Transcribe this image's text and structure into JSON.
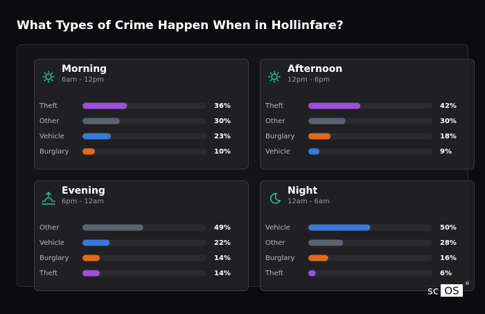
{
  "title": "What Types of Crime Happen When in Hollinfare?",
  "chart_data": [
    {
      "type": "bar",
      "orientation": "horizontal",
      "title": "Morning",
      "subtitle": "6am - 12pm",
      "categories": [
        "Theft",
        "Other",
        "Vehicle",
        "Burglary"
      ],
      "values": [
        36,
        30,
        23,
        10
      ],
      "value_labels": [
        "36%",
        "30%",
        "23%",
        "10%"
      ],
      "colors": [
        "#9b4fd6",
        "#5c6270",
        "#3a78d8",
        "#e06a1c"
      ],
      "xlim": [
        0,
        100
      ]
    },
    {
      "type": "bar",
      "orientation": "horizontal",
      "title": "Afternoon",
      "subtitle": "12pm - 6pm",
      "categories": [
        "Theft",
        "Other",
        "Burglary",
        "Vehicle"
      ],
      "values": [
        42,
        30,
        18,
        9
      ],
      "value_labels": [
        "42%",
        "30%",
        "18%",
        "9%"
      ],
      "colors": [
        "#9b4fd6",
        "#5c6270",
        "#e06a1c",
        "#3a78d8"
      ],
      "xlim": [
        0,
        100
      ]
    },
    {
      "type": "bar",
      "orientation": "horizontal",
      "title": "Evening",
      "subtitle": "6pm - 12am",
      "categories": [
        "Other",
        "Vehicle",
        "Burglary",
        "Theft"
      ],
      "values": [
        49,
        22,
        14,
        14
      ],
      "value_labels": [
        "49%",
        "22%",
        "14%",
        "14%"
      ],
      "colors": [
        "#5c6270",
        "#3a78d8",
        "#e06a1c",
        "#9b4fd6"
      ],
      "xlim": [
        0,
        100
      ]
    },
    {
      "type": "bar",
      "orientation": "horizontal",
      "title": "Night",
      "subtitle": "12am - 6am",
      "categories": [
        "Vehicle",
        "Other",
        "Burglary",
        "Theft"
      ],
      "values": [
        50,
        28,
        16,
        6
      ],
      "value_labels": [
        "50%",
        "28%",
        "16%",
        "6%"
      ],
      "colors": [
        "#3a78d8",
        "#5c6270",
        "#e06a1c",
        "#9b4fd6"
      ],
      "xlim": [
        0,
        100
      ]
    }
  ],
  "logo": {
    "prefix": "sc",
    "mark": "OS",
    "reg": "®"
  }
}
